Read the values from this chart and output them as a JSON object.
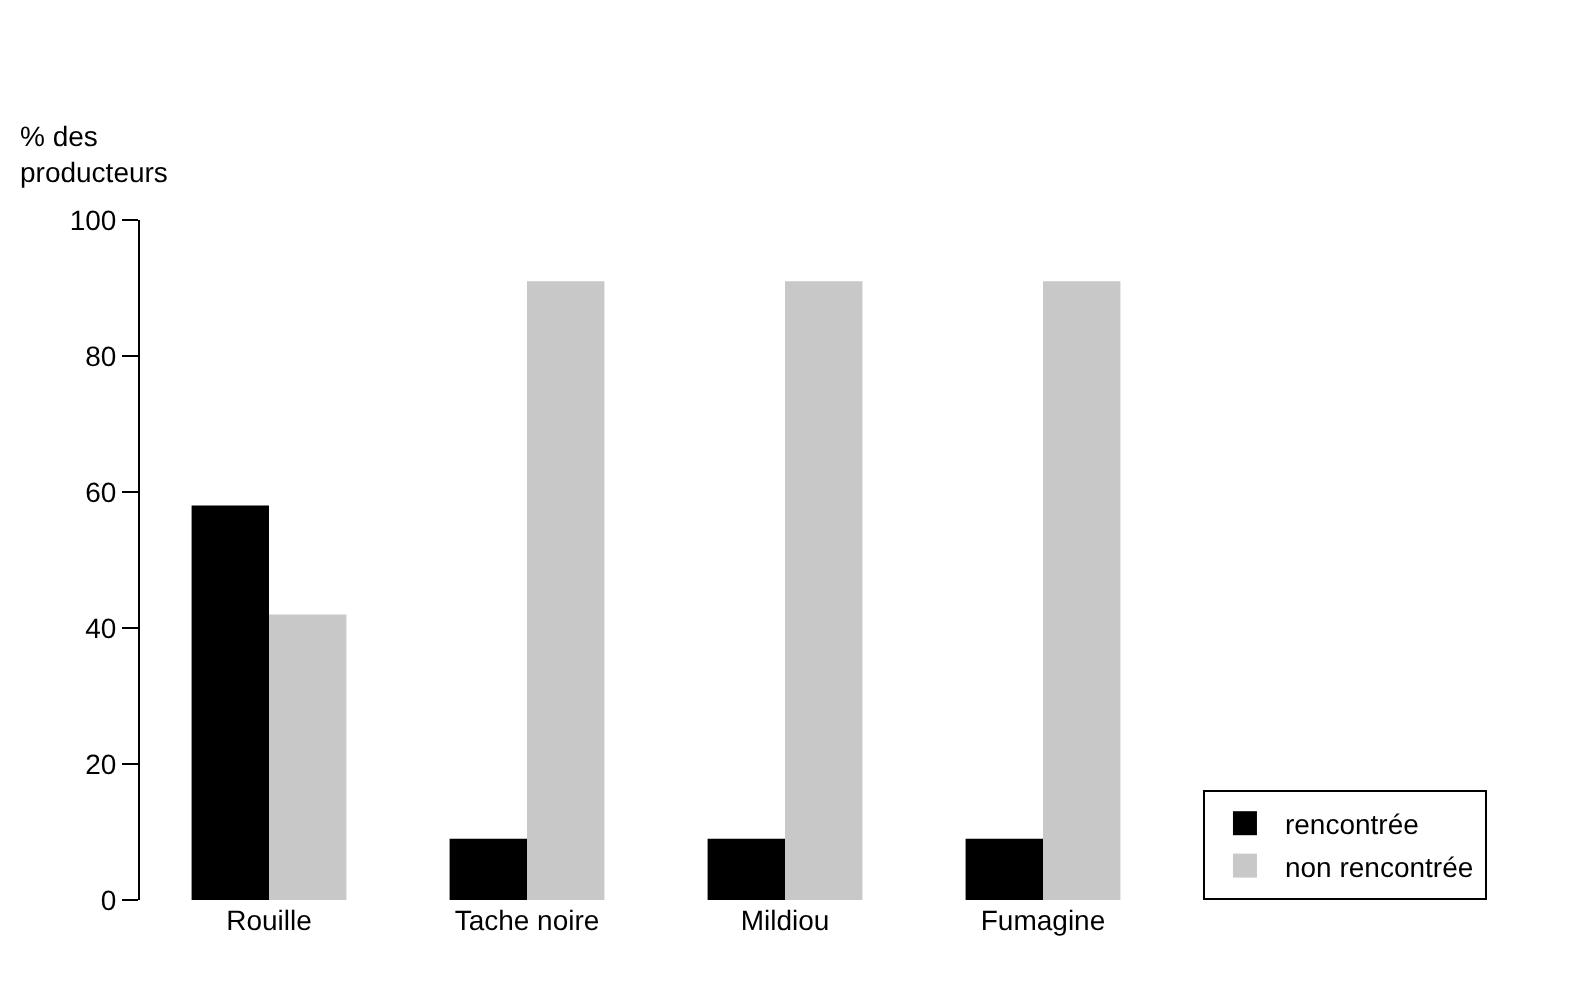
{
  "chart_data": {
    "type": "bar",
    "ylabel": "% des\nproducteurs",
    "categories": [
      "Rouille",
      "Tache noire",
      "Mildiou",
      "Fumagine"
    ],
    "series": [
      {
        "name": "rencontrée",
        "color": "#000000",
        "values": [
          58,
          9,
          9,
          9
        ]
      },
      {
        "name": "non rencontrée",
        "color": "#c8c8c8",
        "values": [
          42,
          91,
          91,
          91
        ]
      }
    ],
    "ylim": [
      0,
      100
    ],
    "yticks": [
      0,
      20,
      40,
      60,
      80,
      100
    ],
    "legend": "bottom right"
  }
}
